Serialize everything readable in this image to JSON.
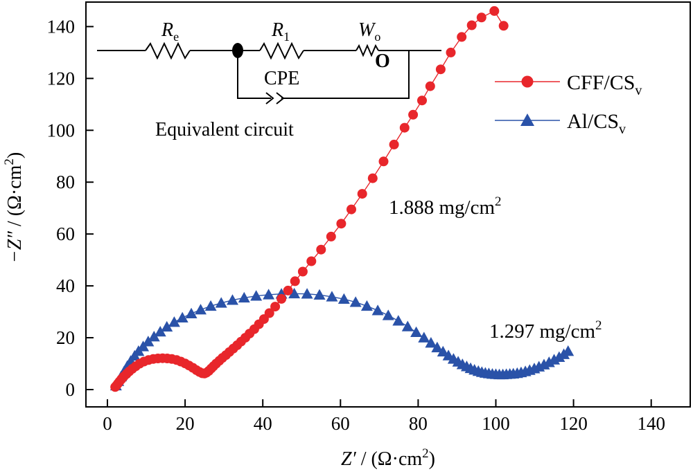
{
  "chart_data": {
    "type": "scatter",
    "xlabel": {
      "main": "Z′",
      "unit": " / (Ω·cm",
      "sup": "2",
      "close": ")"
    },
    "ylabel": {
      "main": "−Z″",
      "unit": " / (Ω·cm",
      "sup": "2",
      "close": ")"
    },
    "xlim": [
      -5,
      150
    ],
    "ylim": [
      -7,
      150
    ],
    "xticks": [
      0,
      20,
      40,
      60,
      80,
      100,
      120,
      140
    ],
    "yticks": [
      0,
      20,
      40,
      60,
      80,
      100,
      120,
      140
    ],
    "grid": false,
    "legend_position": "upper-right",
    "series": [
      {
        "name": "CFF/CS",
        "name_sub": "v",
        "color": "#e8262b",
        "marker": "circle",
        "x": [
          2.0,
          2.3,
          2.7,
          3.1,
          3.6,
          4.2,
          4.9,
          5.6,
          6.4,
          7.3,
          8.3,
          9.4,
          10.6,
          11.8,
          13.0,
          14.2,
          15.4,
          16.6,
          17.8,
          18.9,
          20.0,
          21.0,
          22.0,
          22.9,
          23.7,
          24.4,
          25.0,
          25.5,
          26.1,
          26.7,
          27.3,
          28.0,
          28.8,
          29.6,
          30.5,
          31.4,
          32.4,
          33.4,
          34.4,
          35.5,
          36.6,
          37.8,
          39.0,
          40.3,
          41.7,
          43.2,
          44.8,
          46.5,
          48.3,
          50.3,
          52.5,
          55.0,
          57.6,
          60.2,
          62.8,
          65.6,
          68.3,
          71.1,
          73.8,
          76.5,
          78.7,
          81.0,
          83.1,
          85.8,
          88.4,
          91.2,
          93.8,
          96.3,
          99.6,
          102.0
        ],
        "y": [
          1.0,
          1.5,
          2.3,
          3.1,
          4.0,
          5.0,
          6.0,
          7.0,
          8.0,
          9.0,
          10.0,
          10.8,
          11.4,
          11.8,
          12.0,
          12.1,
          12.0,
          11.8,
          11.4,
          10.8,
          10.1,
          9.3,
          8.4,
          7.5,
          6.8,
          6.3,
          6.2,
          6.5,
          7.2,
          8.1,
          9.0,
          10.0,
          11.1,
          12.2,
          13.3,
          14.5,
          15.8,
          17.1,
          18.5,
          20.0,
          21.6,
          23.3,
          25.2,
          27.2,
          29.5,
          32.0,
          35.0,
          38.2,
          41.8,
          45.5,
          49.5,
          54.0,
          59.0,
          64.0,
          69.5,
          75.5,
          81.5,
          88.0,
          94.5,
          101.0,
          106.0,
          111.5,
          117.0,
          123.5,
          130.0,
          136.0,
          140.5,
          143.5,
          146.0,
          140.3
        ]
      },
      {
        "name": "Al/CS",
        "name_sub": "v",
        "color": "#2a52a8",
        "marker": "triangle",
        "x": [
          2.2,
          2.8,
          3.5,
          4.3,
          5.1,
          6.0,
          7.0,
          8.0,
          9.2,
          10.5,
          12.0,
          13.6,
          15.3,
          17.2,
          19.3,
          21.6,
          24.0,
          26.6,
          29.3,
          32.2,
          35.2,
          38.3,
          41.5,
          44.8,
          48.1,
          51.4,
          54.6,
          57.8,
          60.9,
          63.9,
          66.8,
          69.6,
          72.3,
          74.9,
          77.3,
          79.5,
          81.5,
          83.3,
          84.9,
          86.4,
          87.8,
          89.1,
          90.3,
          91.4,
          92.5,
          93.5,
          94.5,
          95.5,
          96.4,
          97.3,
          98.2,
          99.1,
          100.0,
          100.9,
          101.8,
          102.7,
          103.6,
          104.5,
          105.5,
          106.5,
          107.6,
          108.7,
          109.9,
          111.1,
          112.4,
          113.7,
          115.0,
          116.3,
          117.5,
          118.6
        ],
        "y": [
          1.5,
          3.2,
          5.0,
          7.0,
          9.0,
          11.0,
          13.0,
          14.8,
          16.6,
          18.5,
          20.4,
          22.3,
          24.2,
          26.0,
          27.7,
          29.3,
          30.8,
          32.2,
          33.4,
          34.5,
          35.4,
          36.1,
          36.6,
          36.9,
          37.0,
          36.9,
          36.5,
          35.8,
          34.9,
          33.7,
          32.2,
          30.5,
          28.6,
          26.5,
          24.3,
          22.1,
          20.0,
          18.0,
          16.2,
          14.6,
          13.1,
          11.8,
          10.7,
          9.7,
          8.9,
          8.2,
          7.6,
          7.1,
          6.7,
          6.4,
          6.2,
          6.0,
          5.9,
          5.8,
          5.8,
          5.9,
          6.0,
          6.1,
          6.3,
          6.6,
          7.0,
          7.5,
          8.1,
          8.8,
          9.6,
          10.5,
          11.5,
          12.5,
          13.6,
          14.8
        ]
      }
    ],
    "annotations": [
      {
        "id": "cff",
        "text": "1.888 mg/cm",
        "sup": "2"
      },
      {
        "id": "al",
        "text": "1.297 mg/cm",
        "sup": "2"
      }
    ],
    "inset": {
      "caption": "Equivalent circuit",
      "Re": {
        "main": "R",
        "sub": "e"
      },
      "R1": {
        "main": "R",
        "sub": "1"
      },
      "Wo": {
        "main": "W",
        "sub": "o"
      },
      "Wo_box": "O",
      "cpe": "CPE"
    }
  }
}
